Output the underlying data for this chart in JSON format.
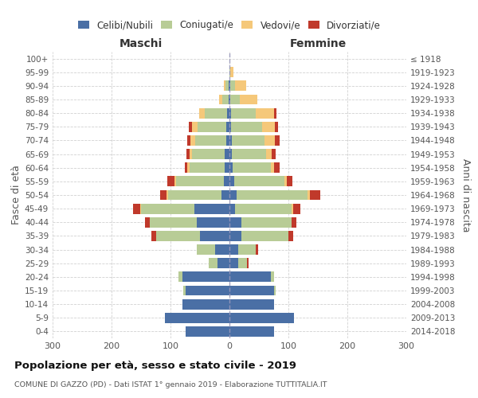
{
  "age_groups": [
    "0-4",
    "5-9",
    "10-14",
    "15-19",
    "20-24",
    "25-29",
    "30-34",
    "35-39",
    "40-44",
    "45-49",
    "50-54",
    "55-59",
    "60-64",
    "65-69",
    "70-74",
    "75-79",
    "80-84",
    "85-89",
    "90-94",
    "95-99",
    "100+"
  ],
  "birth_years": [
    "2014-2018",
    "2009-2013",
    "2004-2008",
    "1999-2003",
    "1994-1998",
    "1989-1993",
    "1984-1988",
    "1979-1983",
    "1974-1978",
    "1969-1973",
    "1964-1968",
    "1959-1963",
    "1954-1958",
    "1949-1953",
    "1944-1948",
    "1939-1943",
    "1934-1938",
    "1929-1933",
    "1924-1928",
    "1919-1923",
    "≤ 1918"
  ],
  "male": {
    "celibi": [
      75,
      110,
      80,
      75,
      80,
      20,
      25,
      50,
      55,
      60,
      14,
      10,
      8,
      8,
      6,
      6,
      4,
      2,
      2,
      0,
      0
    ],
    "coniugati": [
      0,
      0,
      0,
      3,
      6,
      15,
      30,
      75,
      80,
      90,
      90,
      80,
      60,
      55,
      52,
      48,
      38,
      10,
      5,
      0,
      0
    ],
    "vedovi": [
      0,
      0,
      0,
      0,
      0,
      0,
      0,
      0,
      0,
      2,
      3,
      3,
      3,
      4,
      8,
      10,
      10,
      5,
      2,
      0,
      0
    ],
    "divorziati": [
      0,
      0,
      0,
      0,
      0,
      0,
      0,
      8,
      8,
      12,
      10,
      12,
      5,
      6,
      5,
      5,
      0,
      0,
      0,
      0,
      0
    ]
  },
  "female": {
    "nubili": [
      75,
      110,
      75,
      75,
      70,
      15,
      15,
      20,
      20,
      10,
      12,
      8,
      5,
      4,
      4,
      3,
      3,
      2,
      2,
      0,
      0
    ],
    "coniugate": [
      0,
      0,
      0,
      3,
      5,
      15,
      30,
      80,
      85,
      95,
      120,
      85,
      65,
      58,
      55,
      52,
      42,
      15,
      8,
      2,
      0
    ],
    "vedove": [
      0,
      0,
      0,
      0,
      0,
      0,
      0,
      0,
      0,
      3,
      4,
      4,
      5,
      10,
      18,
      22,
      30,
      30,
      18,
      5,
      0
    ],
    "divorziate": [
      0,
      0,
      0,
      0,
      0,
      3,
      3,
      8,
      8,
      12,
      18,
      10,
      10,
      6,
      8,
      5,
      5,
      0,
      0,
      0,
      0
    ]
  },
  "colors": {
    "celibi": "#4a6fa5",
    "coniugati": "#b8cc96",
    "vedovi": "#f5c87a",
    "divorziati": "#c0392b"
  },
  "xlim": 300,
  "title": "Popolazione per età, sesso e stato civile - 2019",
  "subtitle": "COMUNE DI GAZZO (PD) - Dati ISTAT 1° gennaio 2019 - Elaborazione TUTTITALIA.IT",
  "ylabel_left": "Fasce di età",
  "ylabel_right": "Anni di nascita",
  "xlabel_left": "Maschi",
  "xlabel_right": "Femmine",
  "bg_color": "#ffffff",
  "grid_color": "#cccccc"
}
